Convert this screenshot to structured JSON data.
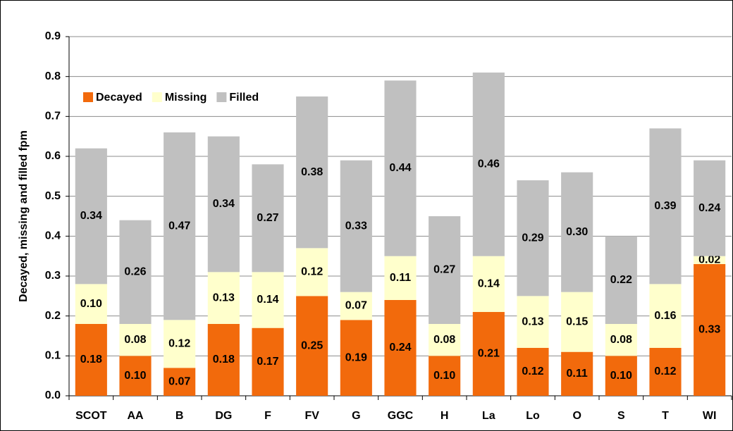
{
  "chart_data": {
    "type": "stacked-bar",
    "y_label": "Decayed, missing and filled fpm",
    "categories": [
      "SCOT",
      "AA",
      "B",
      "DG",
      "F",
      "FV",
      "G",
      "GGC",
      "H",
      "La",
      "Lo",
      "O",
      "S",
      "T",
      "WI"
    ],
    "series": [
      {
        "name": "Decayed",
        "color": "#f26a0c",
        "values": [
          0.18,
          0.1,
          0.07,
          0.18,
          0.17,
          0.25,
          0.19,
          0.24,
          0.1,
          0.21,
          0.12,
          0.11,
          0.1,
          0.12,
          0.33
        ],
        "value_labels": [
          "0.18",
          "0.10",
          "0.07",
          "0.18",
          "0.17",
          "0.25",
          "0.19",
          "0.24",
          "0.10",
          "0.21",
          "0.12",
          "0.11",
          "0.10",
          "0.12",
          "0.33"
        ]
      },
      {
        "name": "Missing",
        "color": "#ffffcc",
        "values": [
          0.1,
          0.08,
          0.12,
          0.13,
          0.14,
          0.12,
          0.07,
          0.11,
          0.08,
          0.14,
          0.13,
          0.15,
          0.08,
          0.16,
          0.02
        ],
        "value_labels": [
          "0.10",
          "0.08",
          "0.12",
          "0.13",
          "0.14",
          "0.12",
          "0.07",
          "0.11",
          "0.08",
          "0.14",
          "0.13",
          "0.15",
          "0.08",
          "0.16",
          "0.02"
        ]
      },
      {
        "name": "Filled",
        "color": "#c0c0c0",
        "values": [
          0.34,
          0.26,
          0.47,
          0.34,
          0.27,
          0.38,
          0.33,
          0.44,
          0.27,
          0.46,
          0.29,
          0.3,
          0.22,
          0.39,
          0.24
        ],
        "value_labels": [
          "0.34",
          "0.26",
          "0.47",
          "0.34",
          "0.27",
          "0.38",
          "0.33",
          "0.44",
          "0.27",
          "0.46",
          "0.29",
          "0.30",
          "0.22",
          "0.39",
          "0.24"
        ]
      }
    ],
    "ylim": [
      0,
      0.9
    ],
    "yticks": [
      {
        "value": 0,
        "label": "0.0"
      },
      0.1,
      0.2,
      0.3,
      0.4,
      0.5,
      0.6,
      0.7,
      0.8,
      0.9
    ],
    "grid": true,
    "legend": "top-left"
  }
}
